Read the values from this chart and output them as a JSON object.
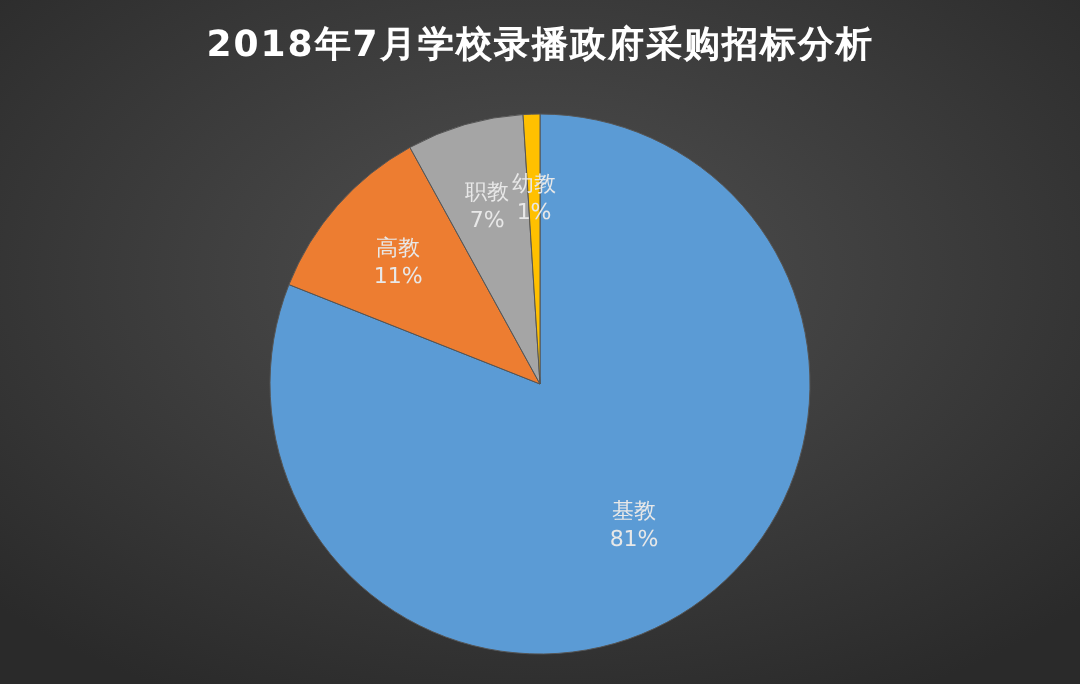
{
  "chart_data": {
    "type": "pie",
    "title": "2018年7月学校录播政府采购招标分析",
    "categories": [
      "基教",
      "高教",
      "职教",
      "幼教"
    ],
    "values": [
      81,
      11,
      7,
      1
    ],
    "value_labels": [
      "81%",
      "11%",
      "7%",
      "1%"
    ],
    "colors": [
      "#5b9bd5",
      "#ed7d31",
      "#a5a5a5",
      "#ffc000"
    ]
  }
}
